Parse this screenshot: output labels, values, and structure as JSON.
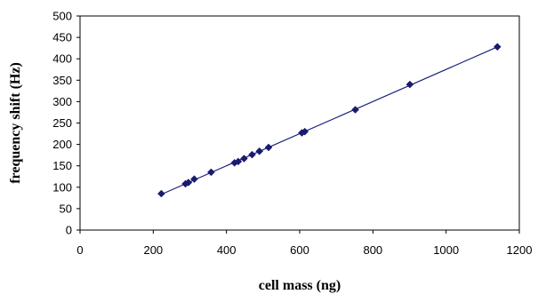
{
  "chart_data": {
    "type": "scatter",
    "xlabel": "cell mass (ng)",
    "ylabel": "frequency shift (Hz)",
    "xlim": [
      0,
      1200
    ],
    "ylim": [
      0,
      500
    ],
    "xticks": [
      0,
      200,
      400,
      600,
      800,
      1000,
      1200
    ],
    "yticks": [
      0,
      50,
      100,
      150,
      200,
      250,
      300,
      350,
      400,
      450,
      500
    ],
    "grid": false,
    "legend": "none",
    "series": [
      {
        "marker": "diamond",
        "color": "#1a1a6e",
        "line_color": "#1a237e",
        "trendline": true,
        "points": [
          {
            "x": 222,
            "y": 85
          },
          {
            "x": 288,
            "y": 108
          },
          {
            "x": 296,
            "y": 111
          },
          {
            "x": 312,
            "y": 119
          },
          {
            "x": 358,
            "y": 135
          },
          {
            "x": 422,
            "y": 157
          },
          {
            "x": 432,
            "y": 160
          },
          {
            "x": 448,
            "y": 167
          },
          {
            "x": 470,
            "y": 176
          },
          {
            "x": 490,
            "y": 184
          },
          {
            "x": 515,
            "y": 193
          },
          {
            "x": 606,
            "y": 227
          },
          {
            "x": 614,
            "y": 230
          },
          {
            "x": 752,
            "y": 281
          },
          {
            "x": 901,
            "y": 340
          },
          {
            "x": 1140,
            "y": 428
          }
        ]
      }
    ]
  }
}
